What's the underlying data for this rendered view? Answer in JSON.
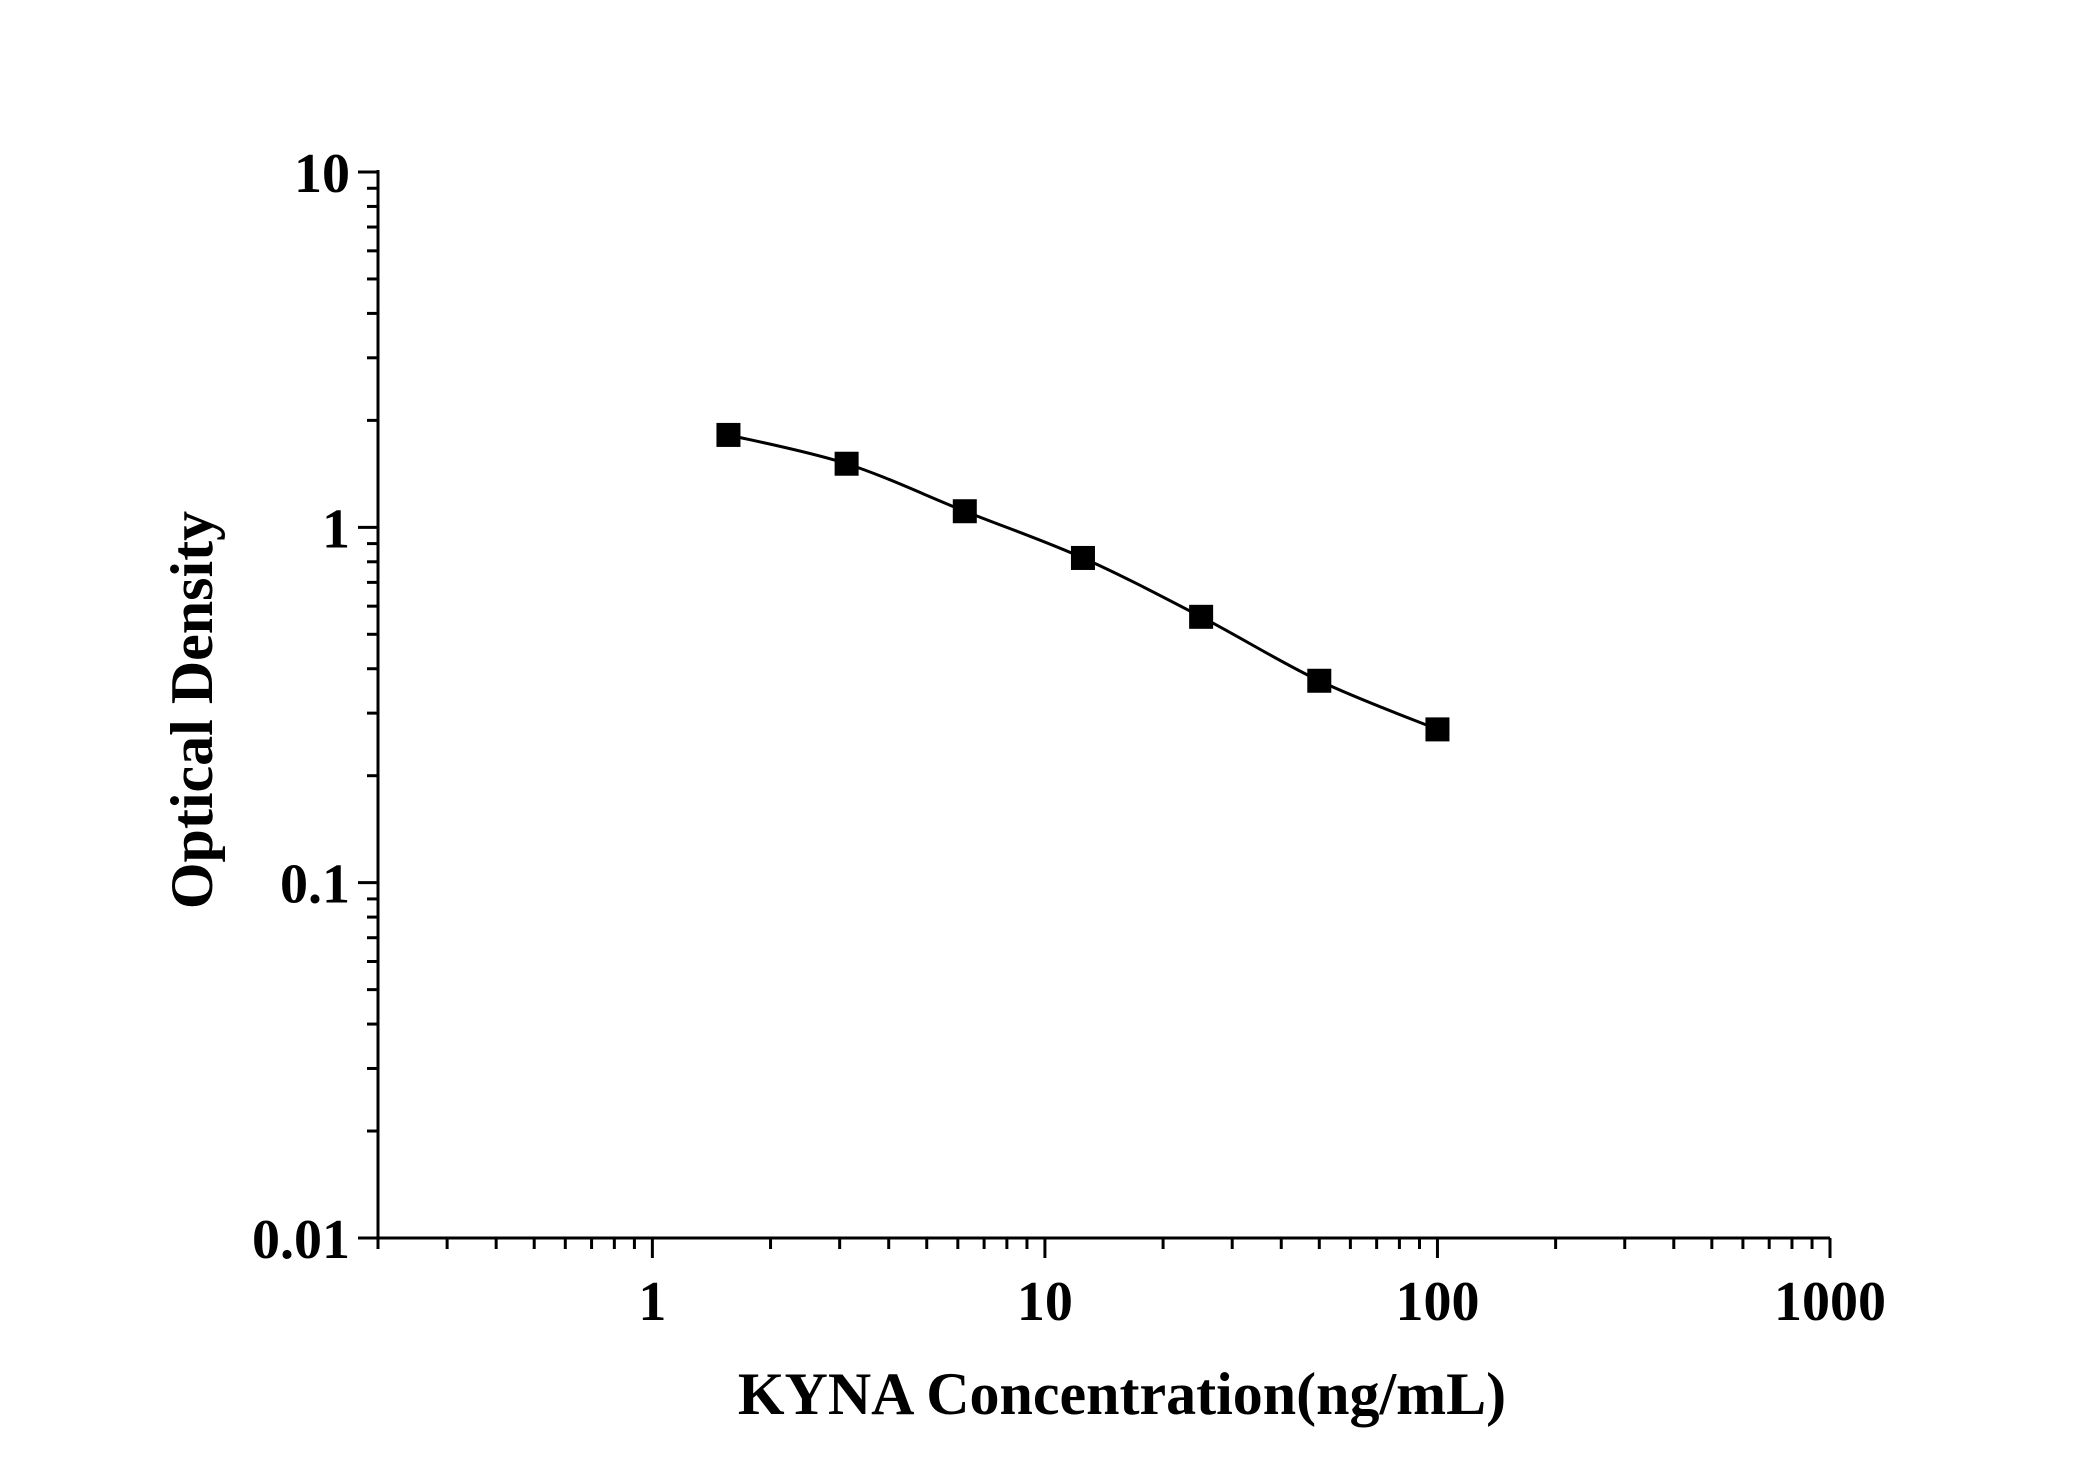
{
  "chart_data": {
    "type": "line",
    "title": "",
    "xlabel": "KYNA Concentration(ng/mL)",
    "ylabel": "Optical Density",
    "x_scale": "log",
    "y_scale": "log",
    "xlim": [
      0.2,
      1000
    ],
    "ylim": [
      0.01,
      10
    ],
    "x_ticks": [
      1,
      10,
      100,
      1000
    ],
    "x_tick_labels": [
      "1",
      "10",
      "100",
      "1000"
    ],
    "y_ticks": [
      0.01,
      0.1,
      1,
      10
    ],
    "y_tick_labels": [
      "0.01",
      "0.1",
      "1",
      "10"
    ],
    "grid": false,
    "legend": "none",
    "series": [
      {
        "marker": "square",
        "color": "#000000",
        "x": [
          1.5625,
          3.125,
          6.25,
          12.5,
          25,
          50,
          100
        ],
        "y": [
          1.82,
          1.51,
          1.11,
          0.82,
          0.56,
          0.37,
          0.27
        ]
      }
    ]
  }
}
